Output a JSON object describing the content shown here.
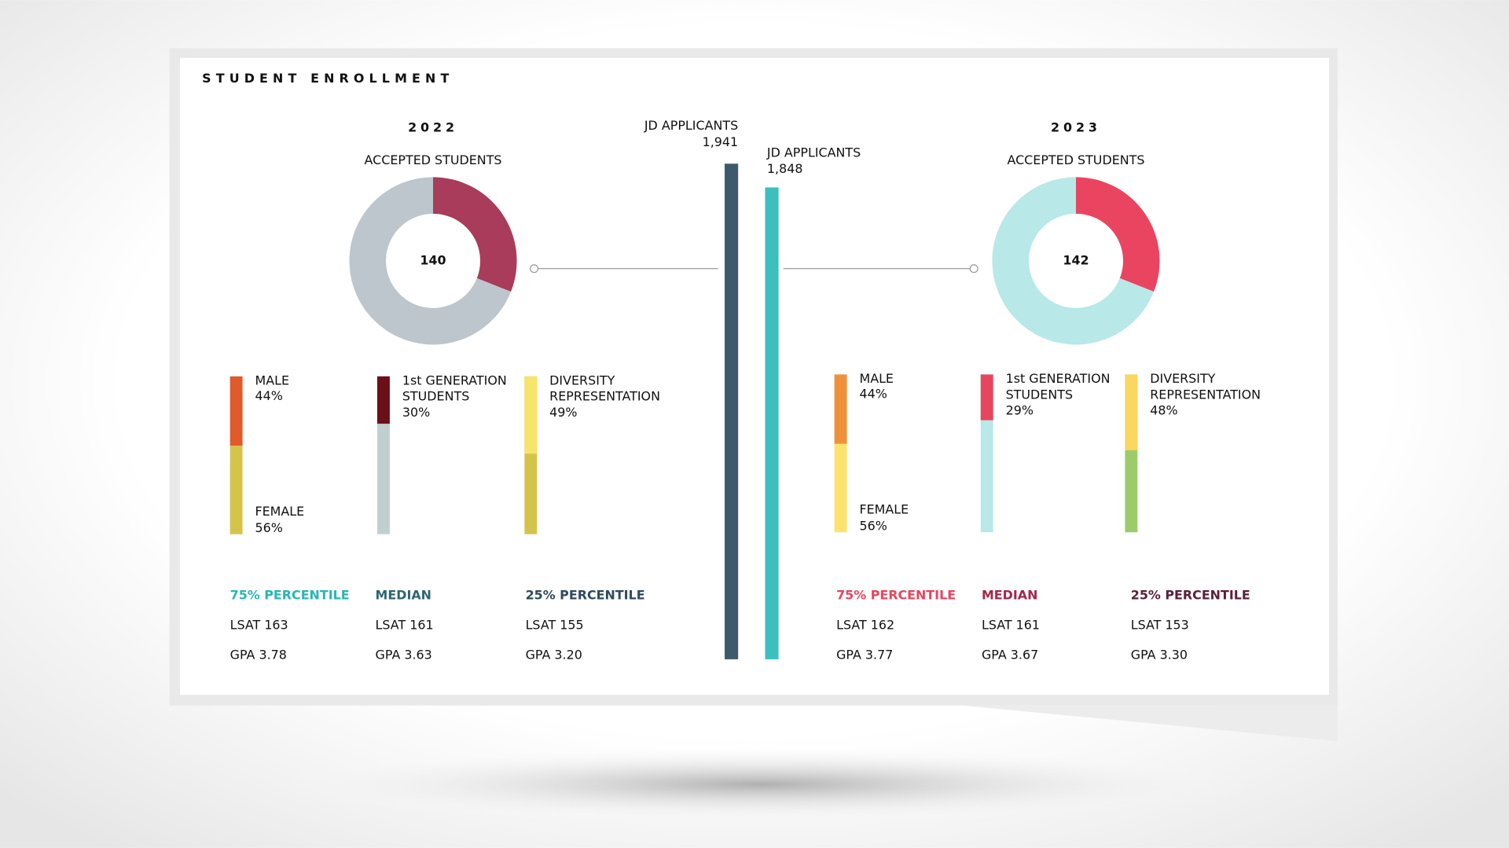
{
  "title": "STUDENT ENROLLMENT",
  "years": [
    {
      "year": "2022",
      "accepted_label": "ACCEPTED STUDENTS",
      "accepted": 140,
      "accepted_highlight": 31,
      "donut_colors": [
        "#a83c5a",
        "#bcc6cc"
      ],
      "applicants": {
        "label": "JD APPLICANTS",
        "value": 1941,
        "value_label": "1,941",
        "color": "#3d5a6c"
      },
      "gender": {
        "male_label": "MALE",
        "male": {
          "value": 44,
          "label": "44%"
        },
        "female_label": "FEMALE",
        "female": {
          "value": 56,
          "label": "56%"
        },
        "colors": [
          "#e05a2b",
          "#d4c44a"
        ]
      },
      "first_gen": {
        "label_lines": [
          "1st GENERATION",
          "STUDENTS"
        ],
        "value": {
          "value": 30,
          "label": "30%"
        },
        "colors": [
          "#6b1018",
          "#c0d0d0"
        ]
      },
      "diversity": {
        "label_lines": [
          "DIVERSITY",
          "REPRESENTATION"
        ],
        "value": {
          "value": 49,
          "label": "49%"
        },
        "colors": [
          "#f7e46a",
          "#d4c44a"
        ]
      },
      "percentiles": [
        {
          "heading": "75% PERCENTILE",
          "color": "#2ab5b5",
          "lines": [
            "LSAT 163",
            "GPA 3.78"
          ]
        },
        {
          "heading": "MEDIAN",
          "color": "#2e6670",
          "lines": [
            "LSAT 161",
            "GPA 3.63"
          ]
        },
        {
          "heading": "25% PERCENTILE",
          "color": "#2e4a5e",
          "lines": [
            "LSAT 155",
            "GPA 3.20"
          ]
        }
      ]
    },
    {
      "year": "2023",
      "accepted_label": "ACCEPTED STUDENTS",
      "accepted": 142,
      "accepted_highlight": 31,
      "donut_colors": [
        "#ea4560",
        "#b8e8e8"
      ],
      "applicants": {
        "label": "JD APPLICANTS",
        "value": 1848,
        "value_label": "1,848",
        "color": "#3bbfbf"
      },
      "gender": {
        "male_label": "MALE",
        "male": {
          "value": 44,
          "label": "44%"
        },
        "female_label": "FEMALE",
        "female": {
          "value": 56,
          "label": "56%"
        },
        "colors": [
          "#f0913a",
          "#fbe36e"
        ]
      },
      "first_gen": {
        "label_lines": [
          "1st GENERATION",
          "STUDENTS"
        ],
        "value": {
          "value": 29,
          "label": "29%"
        },
        "colors": [
          "#e8455e",
          "#b8e8e8"
        ]
      },
      "diversity": {
        "label_lines": [
          "DIVERSITY",
          "REPRESENTATION"
        ],
        "value": {
          "value": 48,
          "label": "48%"
        },
        "colors": [
          "#fbd760",
          "#9ccc6a"
        ]
      },
      "percentiles": [
        {
          "heading": "75% PERCENTILE",
          "color": "#e8455e",
          "lines": [
            "LSAT 162",
            "GPA 3.77"
          ]
        },
        {
          "heading": "MEDIAN",
          "color": "#a3284a",
          "lines": [
            "LSAT 161",
            "GPA 3.67"
          ]
        },
        {
          "heading": "25% PERCENTILE",
          "color": "#5a1f3a",
          "lines": [
            "LSAT 153",
            "GPA 3.30"
          ]
        }
      ]
    }
  ]
}
